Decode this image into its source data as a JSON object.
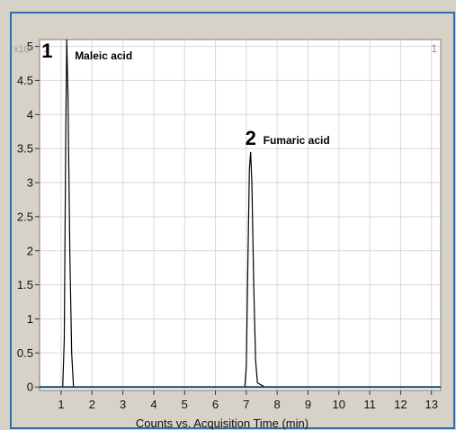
{
  "chart_data": {
    "type": "line",
    "title": "",
    "xlabel": "Counts vs. Acquisition Time (min)",
    "ylabel": "",
    "y_exponent_label": "x10⁵",
    "xlim": [
      0.3,
      13.3
    ],
    "ylim": [
      -0.05,
      5.1
    ],
    "x_ticks": [
      1,
      2,
      3,
      4,
      5,
      6,
      7,
      8,
      9,
      10,
      11,
      12,
      13
    ],
    "y_ticks": [
      0,
      0.5,
      1,
      1.5,
      2,
      2.5,
      3,
      3.5,
      4,
      4.5,
      5
    ],
    "x_tick_labels": [
      "1",
      "2",
      "3",
      "4",
      "5",
      "6",
      "7",
      "8",
      "9",
      "10",
      "11",
      "12",
      "13"
    ],
    "y_tick_labels": [
      "0",
      "0.5",
      "1",
      "1.5",
      "2",
      "2.5",
      "3",
      "3.5",
      "4",
      "4.5",
      "5"
    ],
    "grid": true,
    "corner_labels": {
      "left": "1",
      "right": "1"
    },
    "series": [
      {
        "color": "#000000",
        "points": [
          [
            0.3,
            0.0
          ],
          [
            1.05,
            0.0
          ],
          [
            1.1,
            0.7
          ],
          [
            1.15,
            3.8
          ],
          [
            1.18,
            5.1
          ],
          [
            1.22,
            4.3
          ],
          [
            1.28,
            2.0
          ],
          [
            1.34,
            0.5
          ],
          [
            1.4,
            0.0
          ],
          [
            6.95,
            0.0
          ],
          [
            7.0,
            0.3
          ],
          [
            7.05,
            1.8
          ],
          [
            7.1,
            3.2
          ],
          [
            7.14,
            3.45
          ],
          [
            7.18,
            3.0
          ],
          [
            7.24,
            1.5
          ],
          [
            7.3,
            0.4
          ],
          [
            7.36,
            0.06
          ],
          [
            7.6,
            0.0
          ],
          [
            13.3,
            0.0
          ]
        ]
      }
    ],
    "annotations": [
      {
        "number": "1",
        "name": "Maleic acid",
        "x": 1.18,
        "y": 5.1
      },
      {
        "number": "2",
        "name": "Fumaric acid",
        "x": 7.14,
        "y": 3.45
      }
    ]
  }
}
